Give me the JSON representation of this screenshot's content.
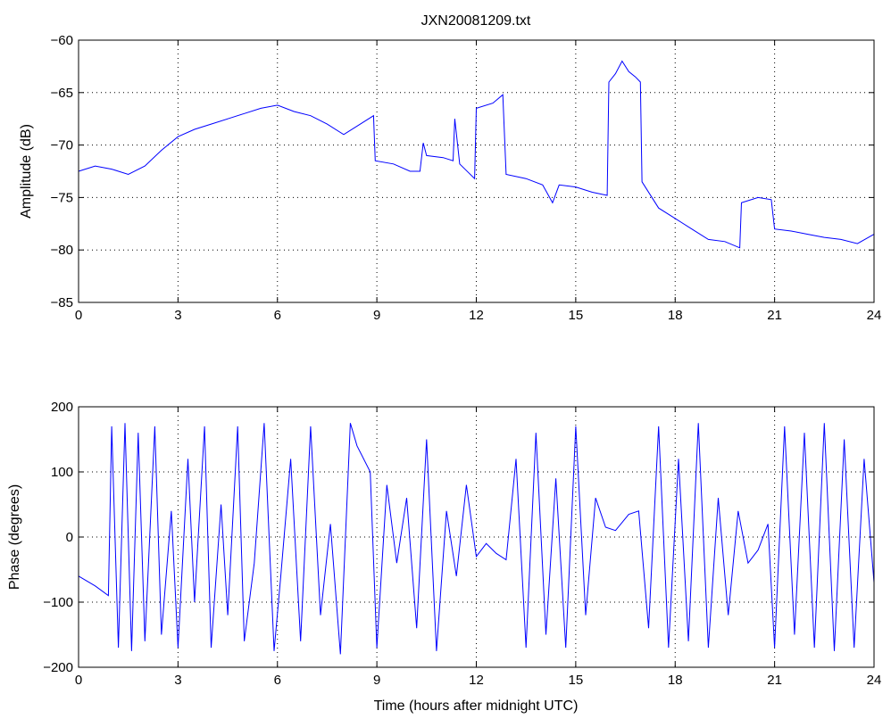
{
  "chart_data": [
    {
      "type": "line",
      "title": "JXN20081209.txt",
      "xlabel": "",
      "ylabel": "Amplitude (dB)",
      "xlim": [
        0,
        24
      ],
      "ylim": [
        -85,
        -60
      ],
      "xticks": [
        "0",
        "3",
        "6",
        "9",
        "12",
        "15",
        "18",
        "21",
        "24"
      ],
      "yticks": [
        "-60",
        "-65",
        "-70",
        "-75",
        "-80",
        "-85"
      ],
      "grid": true,
      "color": "#0000ff",
      "series": [
        {
          "x": [
            0,
            0.5,
            1,
            1.5,
            2,
            2.5,
            3,
            3.5,
            4,
            4.5,
            5,
            5.5,
            6,
            6.5,
            7,
            7.5,
            8,
            8.5,
            8.9,
            8.95,
            9.5,
            10,
            10.3,
            10.4,
            10.5,
            11,
            11.3,
            11.35,
            11.5,
            11.95,
            12,
            12.5,
            12.8,
            12.9,
            13.5,
            14,
            14.3,
            14.5,
            15,
            15.5,
            15.95,
            16,
            16.2,
            16.4,
            16.6,
            16.8,
            16.95,
            17,
            17.5,
            18,
            18.5,
            19,
            19.5,
            19.95,
            20,
            20.5,
            20.9,
            21,
            21.5,
            22,
            22.5,
            23,
            23.5,
            24
          ],
          "y": [
            -72.5,
            -72,
            -72.3,
            -72.8,
            -72,
            -70.5,
            -69.2,
            -68.5,
            -68,
            -67.5,
            -67,
            -66.5,
            -66.2,
            -66.8,
            -67.2,
            -68,
            -69,
            -68,
            -67.2,
            -71.5,
            -71.8,
            -72.5,
            -72.5,
            -69.8,
            -71,
            -71.2,
            -71.5,
            -67.5,
            -71.8,
            -73.2,
            -66.5,
            -66,
            -65.2,
            -72.8,
            -73.2,
            -73.8,
            -75.5,
            -73.8,
            -74,
            -74.5,
            -74.8,
            -64,
            -63.2,
            -62,
            -63,
            -63.5,
            -64,
            -73.5,
            -76,
            -77,
            -78,
            -79,
            -79.2,
            -79.8,
            -75.5,
            -75,
            -75.2,
            -78,
            -78.2,
            -78.5,
            -78.8,
            -79,
            -79.4,
            -78.5
          ]
        }
      ]
    },
    {
      "type": "line",
      "title": "",
      "xlabel": "Time (hours after midnight UTC)",
      "ylabel": "Phase (degrees)",
      "xlim": [
        0,
        24
      ],
      "ylim": [
        -200,
        200
      ],
      "xticks": [
        "0",
        "3",
        "6",
        "9",
        "12",
        "15",
        "18",
        "21",
        "24"
      ],
      "yticks": [
        "200",
        "100",
        "0",
        "-100",
        "-200"
      ],
      "grid": true,
      "color": "#0000ff",
      "series": [
        {
          "x": [
            0,
            0.5,
            0.9,
            1.0,
            1.2,
            1.4,
            1.6,
            1.8,
            2.0,
            2.3,
            2.5,
            2.8,
            3.0,
            3.3,
            3.5,
            3.8,
            4.0,
            4.3,
            4.5,
            4.8,
            5.0,
            5.3,
            5.6,
            5.9,
            6.1,
            6.4,
            6.7,
            7.0,
            7.3,
            7.6,
            7.9,
            8.2,
            8.4,
            8.8,
            9.0,
            9.3,
            9.6,
            9.9,
            10.2,
            10.5,
            10.8,
            11.1,
            11.4,
            11.7,
            12.0,
            12.3,
            12.6,
            12.9,
            13.2,
            13.5,
            13.8,
            14.1,
            14.4,
            14.7,
            15.0,
            15.3,
            15.6,
            15.9,
            16.2,
            16.6,
            16.9,
            17.2,
            17.5,
            17.8,
            18.1,
            18.4,
            18.7,
            19.0,
            19.3,
            19.6,
            19.9,
            20.2,
            20.5,
            20.8,
            21.0,
            21.3,
            21.6,
            21.9,
            22.2,
            22.5,
            22.8,
            23.1,
            23.4,
            23.7,
            24.0
          ],
          "y": [
            -60,
            -75,
            -90,
            170,
            -170,
            175,
            -175,
            160,
            -160,
            170,
            -150,
            40,
            -170,
            120,
            -100,
            170,
            -170,
            50,
            -120,
            170,
            -160,
            -40,
            175,
            -175,
            -60,
            120,
            -160,
            170,
            -120,
            20,
            -180,
            175,
            140,
            100,
            -170,
            80,
            -40,
            60,
            -140,
            150,
            -175,
            40,
            -60,
            80,
            -30,
            -10,
            -25,
            -35,
            120,
            -170,
            160,
            -150,
            90,
            -170,
            170,
            -120,
            60,
            15,
            10,
            35,
            40,
            -140,
            170,
            -170,
            120,
            -160,
            175,
            -170,
            60,
            -120,
            40,
            -40,
            -20,
            20,
            -170,
            170,
            -150,
            160,
            -170,
            175,
            -175,
            150,
            -170,
            120,
            -70
          ]
        }
      ]
    }
  ]
}
